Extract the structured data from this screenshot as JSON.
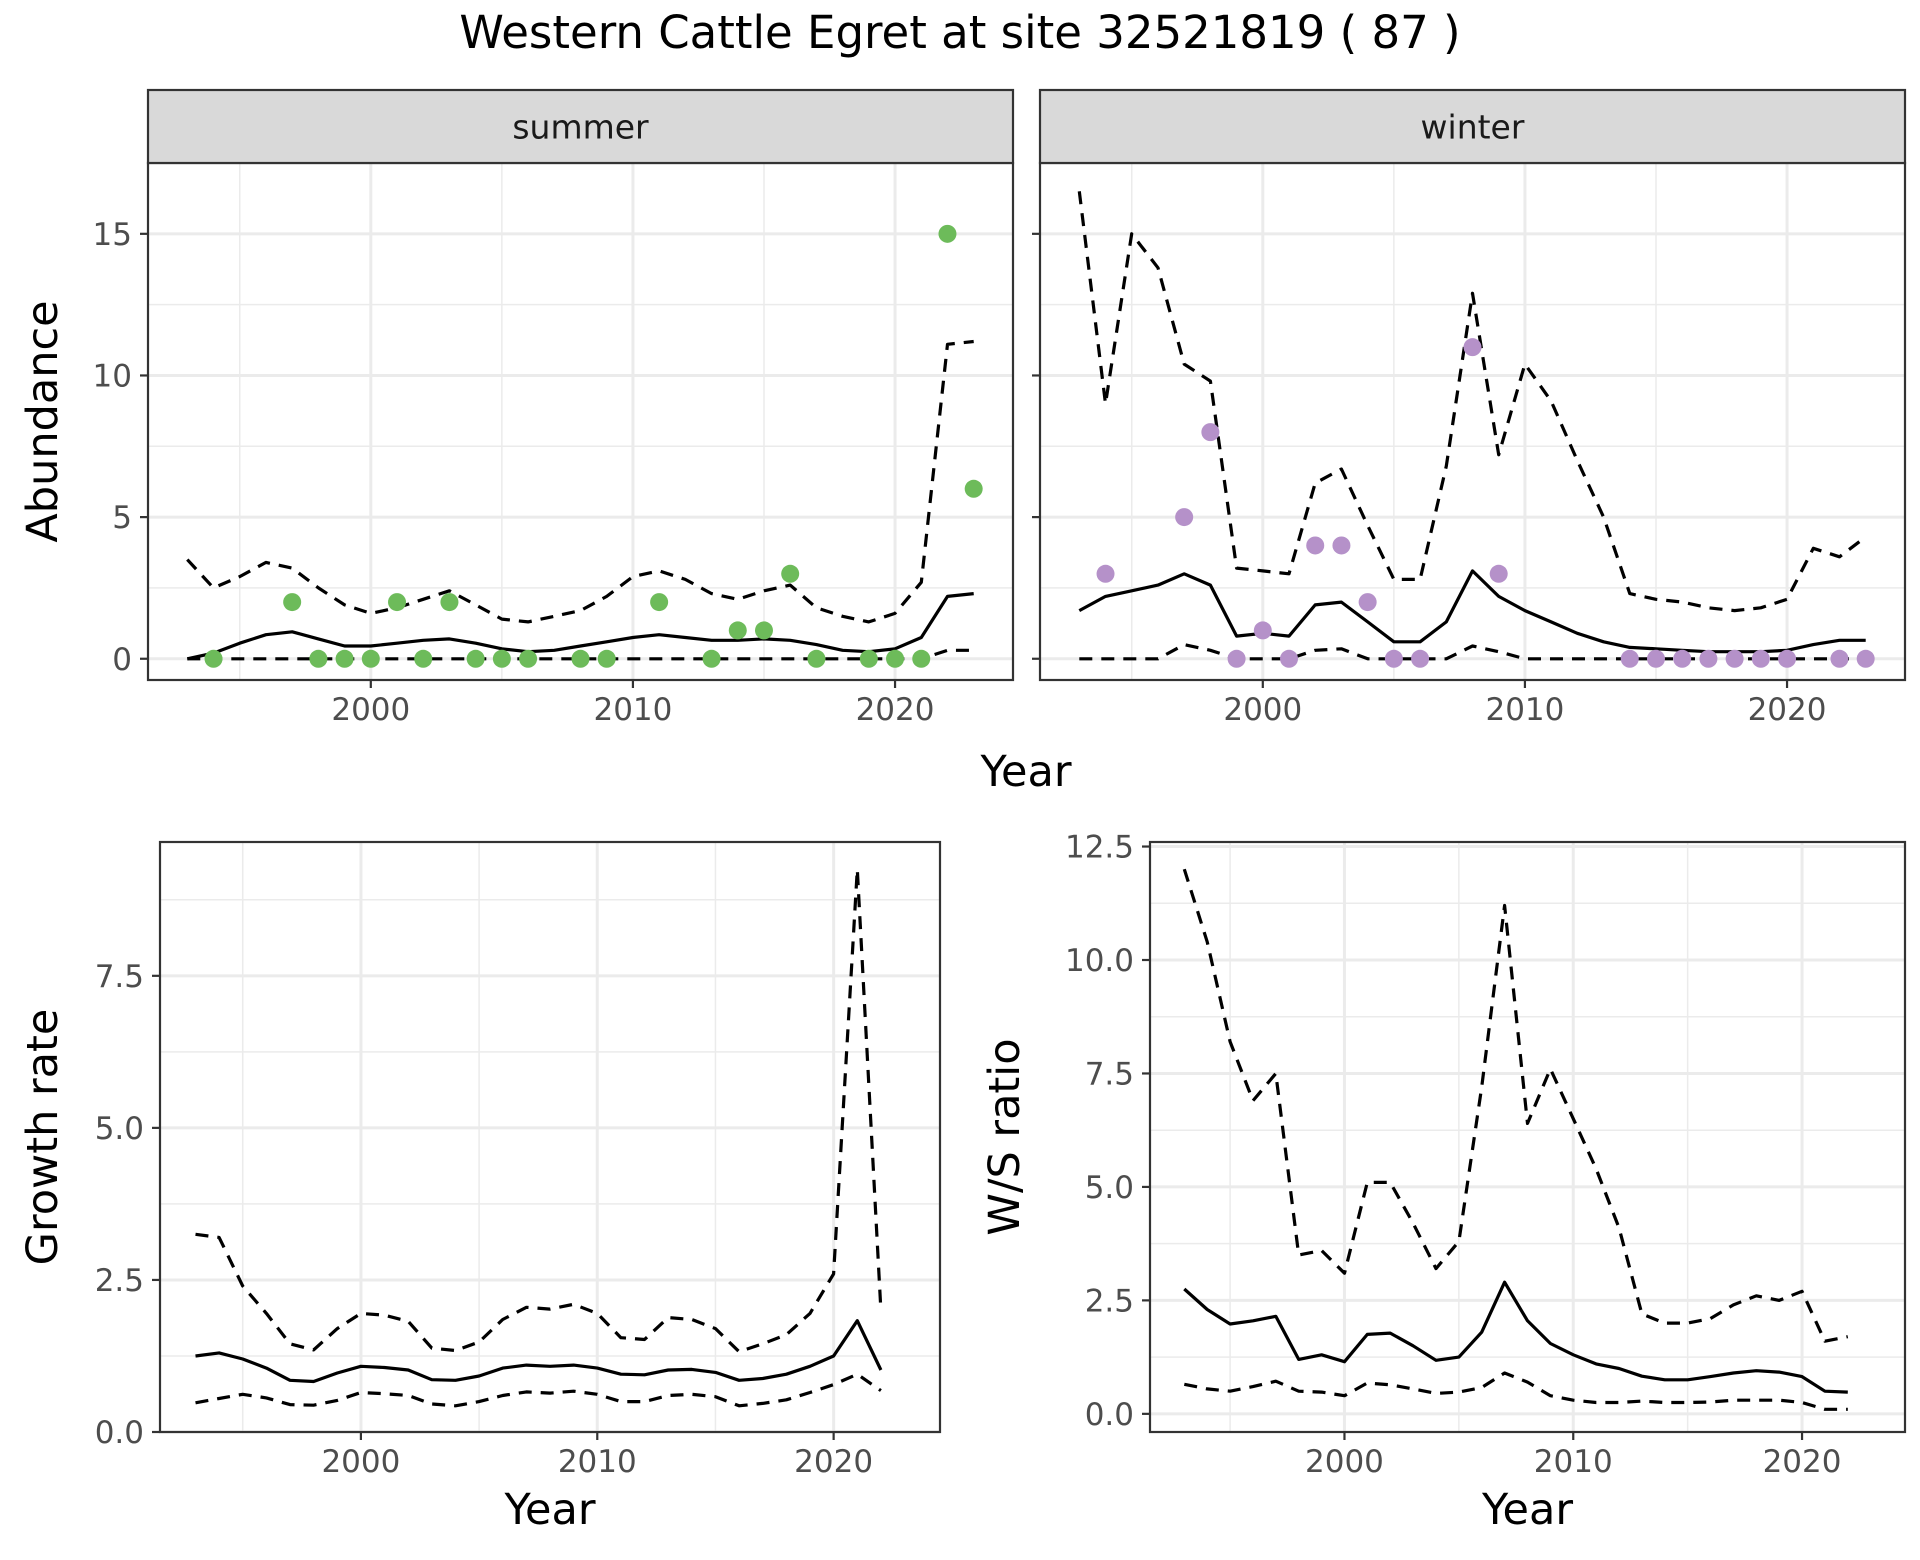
{
  "title": "Western Cattle Egret at site 32521819 ( 87 )",
  "chart_data": [
    {
      "type": "line",
      "panel": "summer",
      "xlabel": "Year",
      "ylabel": "Abundance",
      "xlim": [
        1991.5,
        2024.5
      ],
      "ylim": [
        -0.75,
        17.5
      ],
      "xticks": [
        2000,
        2010,
        2020
      ],
      "yticks": [
        0,
        5,
        10,
        15
      ],
      "point_color": "#6dbb5a",
      "points": {
        "x": [
          1994,
          1997,
          1998,
          1999,
          2000,
          2001,
          2002,
          2003,
          2004,
          2005,
          2006,
          2008,
          2009,
          2011,
          2013,
          2014,
          2015,
          2016,
          2017,
          2019,
          2020,
          2021,
          2022,
          2023
        ],
        "y": [
          0,
          2,
          0,
          0,
          0,
          2,
          0,
          2,
          0,
          0,
          0,
          0,
          0,
          2,
          0,
          1,
          1,
          3,
          0,
          0,
          0,
          0,
          15,
          6
        ]
      },
      "series": [
        {
          "name": "estimate",
          "style": "solid",
          "x": [
            1993,
            1994,
            1995,
            1996,
            1997,
            1998,
            1999,
            2000,
            2001,
            2002,
            2003,
            2004,
            2005,
            2006,
            2007,
            2008,
            2009,
            2010,
            2011,
            2012,
            2013,
            2014,
            2015,
            2016,
            2017,
            2018,
            2019,
            2020,
            2021,
            2022,
            2023
          ],
          "values": [
            0,
            0.2,
            0.55,
            0.85,
            0.95,
            0.7,
            0.45,
            0.45,
            0.55,
            0.65,
            0.7,
            0.55,
            0.35,
            0.25,
            0.3,
            0.45,
            0.6,
            0.75,
            0.85,
            0.75,
            0.65,
            0.65,
            0.7,
            0.65,
            0.5,
            0.3,
            0.25,
            0.35,
            0.75,
            2.2,
            2.3
          ]
        },
        {
          "name": "upper",
          "style": "dashed",
          "x": [
            1993,
            1994,
            1995,
            1996,
            1997,
            1998,
            1999,
            2000,
            2001,
            2002,
            2003,
            2004,
            2005,
            2006,
            2007,
            2008,
            2009,
            2010,
            2011,
            2012,
            2013,
            2014,
            2015,
            2016,
            2017,
            2018,
            2019,
            2020,
            2021,
            2022,
            2023
          ],
          "values": [
            3.5,
            2.5,
            2.9,
            3.4,
            3.2,
            2.5,
            1.9,
            1.6,
            1.8,
            2.1,
            2.4,
            1.9,
            1.4,
            1.3,
            1.5,
            1.7,
            2.2,
            2.9,
            3.1,
            2.8,
            2.3,
            2.1,
            2.4,
            2.6,
            1.8,
            1.5,
            1.3,
            1.6,
            2.7,
            11.1,
            11.2
          ]
        },
        {
          "name": "lower",
          "style": "dashed",
          "x": [
            1993,
            1994,
            1995,
            1996,
            1997,
            1998,
            1999,
            2000,
            2001,
            2002,
            2003,
            2004,
            2005,
            2006,
            2007,
            2008,
            2009,
            2010,
            2011,
            2012,
            2013,
            2014,
            2015,
            2016,
            2017,
            2018,
            2019,
            2020,
            2021,
            2022,
            2023
          ],
          "values": [
            0,
            0,
            0,
            0,
            0,
            0,
            0,
            0,
            0,
            0,
            0,
            0,
            0,
            0,
            0,
            0,
            0,
            0,
            0,
            0,
            0,
            0,
            0,
            0,
            0,
            0,
            0,
            0,
            0,
            0.3,
            0.3
          ]
        }
      ]
    },
    {
      "type": "line",
      "panel": "winter",
      "xlabel": "Year",
      "ylabel": "Abundance",
      "xlim": [
        1991.5,
        2024.5
      ],
      "ylim": [
        -0.75,
        17.5
      ],
      "xticks": [
        2000,
        2010,
        2020
      ],
      "yticks": [
        0,
        5,
        10,
        15
      ],
      "point_color": "#b591c9",
      "points": {
        "x": [
          1994,
          1997,
          1998,
          1999,
          2000,
          2001,
          2002,
          2003,
          2004,
          2005,
          2006,
          2008,
          2009,
          2014,
          2015,
          2016,
          2017,
          2018,
          2019,
          2020,
          2022,
          2023
        ],
        "y": [
          3,
          5,
          8,
          0,
          1,
          0,
          4,
          4,
          2,
          0,
          0,
          11,
          3,
          0,
          0,
          0,
          0,
          0,
          0,
          0,
          0,
          0
        ]
      },
      "series": [
        {
          "name": "estimate",
          "style": "solid",
          "x": [
            1993,
            1994,
            1995,
            1996,
            1997,
            1998,
            1999,
            2000,
            2001,
            2002,
            2003,
            2004,
            2005,
            2006,
            2007,
            2008,
            2009,
            2010,
            2011,
            2012,
            2013,
            2014,
            2015,
            2016,
            2017,
            2018,
            2019,
            2020,
            2021,
            2022,
            2023
          ],
          "values": [
            1.7,
            2.2,
            2.4,
            2.6,
            3.0,
            2.6,
            0.8,
            0.9,
            0.8,
            1.9,
            2.0,
            1.3,
            0.6,
            0.6,
            1.3,
            3.1,
            2.2,
            1.7,
            1.3,
            0.9,
            0.6,
            0.4,
            0.35,
            0.3,
            0.25,
            0.25,
            0.25,
            0.3,
            0.5,
            0.65,
            0.65
          ]
        },
        {
          "name": "upper",
          "style": "dashed",
          "x": [
            1993,
            1994,
            1995,
            1996,
            1997,
            1998,
            1999,
            2000,
            2001,
            2002,
            2003,
            2004,
            2005,
            2006,
            2007,
            2008,
            2009,
            2010,
            2011,
            2012,
            2013,
            2014,
            2015,
            2016,
            2017,
            2018,
            2019,
            2020,
            2021,
            2022,
            2023
          ],
          "values": [
            16.5,
            9.0,
            15.0,
            13.8,
            10.4,
            9.8,
            3.2,
            3.1,
            3.0,
            6.2,
            6.7,
            4.7,
            2.8,
            2.8,
            6.8,
            12.9,
            7.2,
            10.4,
            9.1,
            7.0,
            5.0,
            2.3,
            2.1,
            2.0,
            1.8,
            1.7,
            1.8,
            2.1,
            3.9,
            3.6,
            4.3
          ]
        },
        {
          "name": "lower",
          "style": "dashed",
          "x": [
            1993,
            1994,
            1995,
            1996,
            1997,
            1998,
            1999,
            2000,
            2001,
            2002,
            2003,
            2004,
            2005,
            2006,
            2007,
            2008,
            2009,
            2010,
            2011,
            2012,
            2013,
            2014,
            2015,
            2016,
            2017,
            2018,
            2019,
            2020,
            2021,
            2022,
            2023
          ],
          "values": [
            0,
            0,
            0,
            0,
            0.5,
            0.3,
            0,
            0,
            0,
            0.3,
            0.35,
            0,
            0,
            0,
            0,
            0.45,
            0.25,
            0,
            0,
            0,
            0,
            0,
            0,
            0,
            0,
            0,
            0,
            0,
            0,
            0,
            0
          ]
        }
      ]
    },
    {
      "type": "line",
      "panel": "growth",
      "xlabel": "Year",
      "ylabel": "Growth rate",
      "xlim": [
        1991.5,
        2024.5
      ],
      "ylim": [
        0,
        9.7
      ],
      "xticks": [
        2000,
        2010,
        2020
      ],
      "yticks": [
        0.0,
        2.5,
        5.0,
        7.5
      ],
      "ytick_labels": [
        "0.0",
        "2.5",
        "5.0",
        "7.5"
      ],
      "series": [
        {
          "name": "estimate",
          "style": "solid",
          "x": [
            1993,
            1994,
            1995,
            1996,
            1997,
            1998,
            1999,
            2000,
            2001,
            2002,
            2003,
            2004,
            2005,
            2006,
            2007,
            2008,
            2009,
            2010,
            2011,
            2012,
            2013,
            2014,
            2015,
            2016,
            2017,
            2018,
            2019,
            2020,
            2021,
            2022
          ],
          "values": [
            1.25,
            1.3,
            1.2,
            1.05,
            0.85,
            0.83,
            0.97,
            1.08,
            1.06,
            1.02,
            0.86,
            0.85,
            0.92,
            1.05,
            1.1,
            1.08,
            1.1,
            1.05,
            0.95,
            0.94,
            1.02,
            1.03,
            0.98,
            0.85,
            0.88,
            0.95,
            1.08,
            1.25,
            1.83,
            1.02
          ]
        },
        {
          "name": "upper",
          "style": "dashed",
          "x": [
            1993,
            1994,
            1995,
            1996,
            1997,
            1998,
            1999,
            2000,
            2001,
            2002,
            2003,
            2004,
            2005,
            2006,
            2007,
            2008,
            2009,
            2010,
            2011,
            2012,
            2013,
            2014,
            2015,
            2016,
            2017,
            2018,
            2019,
            2020,
            2021,
            2022
          ],
          "values": [
            3.25,
            3.2,
            2.4,
            1.95,
            1.45,
            1.35,
            1.7,
            1.95,
            1.92,
            1.82,
            1.38,
            1.34,
            1.48,
            1.85,
            2.05,
            2.02,
            2.1,
            1.95,
            1.55,
            1.52,
            1.88,
            1.85,
            1.7,
            1.32,
            1.45,
            1.6,
            1.95,
            2.6,
            9.25,
            2.0
          ]
        },
        {
          "name": "lower",
          "style": "dashed",
          "x": [
            1993,
            1994,
            1995,
            1996,
            1997,
            1998,
            1999,
            2000,
            2001,
            2002,
            2003,
            2004,
            2005,
            2006,
            2007,
            2008,
            2009,
            2010,
            2011,
            2012,
            2013,
            2014,
            2015,
            2016,
            2017,
            2018,
            2019,
            2020,
            2021,
            2022
          ],
          "values": [
            0.48,
            0.55,
            0.62,
            0.56,
            0.45,
            0.44,
            0.52,
            0.65,
            0.63,
            0.6,
            0.46,
            0.43,
            0.5,
            0.6,
            0.66,
            0.64,
            0.67,
            0.62,
            0.5,
            0.5,
            0.6,
            0.62,
            0.58,
            0.43,
            0.47,
            0.53,
            0.65,
            0.78,
            0.95,
            0.68
          ]
        }
      ]
    },
    {
      "type": "line",
      "panel": "ratio",
      "xlabel": "Year",
      "ylabel": "W/S ratio",
      "xlim": [
        1991.5,
        2024.5
      ],
      "ylim": [
        -0.4,
        12.6
      ],
      "xticks": [
        2000,
        2010,
        2020
      ],
      "yticks": [
        0.0,
        2.5,
        5.0,
        7.5,
        10.0,
        12.5
      ],
      "ytick_labels": [
        "0.0",
        "2.5",
        "5.0",
        "7.5",
        "10.0",
        "12.5"
      ],
      "series": [
        {
          "name": "estimate",
          "style": "solid",
          "x": [
            1993,
            1994,
            1995,
            1996,
            1997,
            1998,
            1999,
            2000,
            2001,
            2002,
            2003,
            2004,
            2005,
            2006,
            2007,
            2008,
            2009,
            2010,
            2011,
            2012,
            2013,
            2014,
            2015,
            2016,
            2017,
            2018,
            2019,
            2020,
            2021,
            2022
          ],
          "values": [
            2.75,
            2.3,
            1.98,
            2.05,
            2.15,
            1.2,
            1.3,
            1.15,
            1.75,
            1.78,
            1.5,
            1.18,
            1.25,
            1.8,
            2.9,
            2.05,
            1.55,
            1.3,
            1.1,
            1.0,
            0.83,
            0.75,
            0.75,
            0.82,
            0.9,
            0.95,
            0.92,
            0.82,
            0.5,
            0.48
          ]
        },
        {
          "name": "upper",
          "style": "dashed",
          "x": [
            1993,
            1994,
            1995,
            1996,
            1997,
            1998,
            1999,
            2000,
            2001,
            2002,
            2003,
            2004,
            2005,
            2006,
            2007,
            2008,
            2009,
            2010,
            2011,
            2012,
            2013,
            2014,
            2015,
            2016,
            2017,
            2018,
            2019,
            2020,
            2021,
            2022
          ],
          "values": [
            12.0,
            10.4,
            8.2,
            6.9,
            7.5,
            3.5,
            3.6,
            3.1,
            5.1,
            5.1,
            4.2,
            3.2,
            3.8,
            7.2,
            11.2,
            6.4,
            7.6,
            6.5,
            5.4,
            4.1,
            2.2,
            2.0,
            2.0,
            2.1,
            2.4,
            2.6,
            2.5,
            2.7,
            1.6,
            1.7
          ]
        },
        {
          "name": "lower",
          "style": "dashed",
          "x": [
            1993,
            1994,
            1995,
            1996,
            1997,
            1998,
            1999,
            2000,
            2001,
            2002,
            2003,
            2004,
            2005,
            2006,
            2007,
            2008,
            2009,
            2010,
            2011,
            2012,
            2013,
            2014,
            2015,
            2016,
            2017,
            2018,
            2019,
            2020,
            2021,
            2022
          ],
          "values": [
            0.65,
            0.55,
            0.5,
            0.6,
            0.72,
            0.5,
            0.48,
            0.4,
            0.68,
            0.64,
            0.55,
            0.45,
            0.48,
            0.58,
            0.9,
            0.7,
            0.4,
            0.3,
            0.25,
            0.25,
            0.28,
            0.25,
            0.25,
            0.26,
            0.3,
            0.3,
            0.3,
            0.25,
            0.1,
            0.1
          ]
        }
      ]
    }
  ]
}
